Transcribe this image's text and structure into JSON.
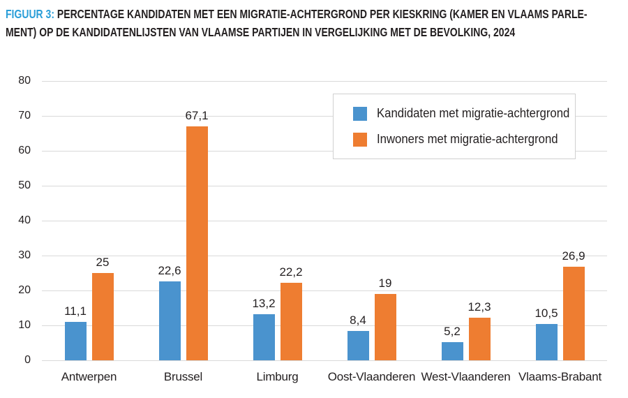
{
  "figure": {
    "prefix": "FIGUUR 3:",
    "title_rest_line1": "PERCENTAGE KANDIDATEN MET EEN MIGRATIE-ACHTERGROND PER KIESKRING (KAMER EN VLAAMS PARLE-",
    "title_line2": "MENT) OP DE KANDIDATENLIJSTEN VAN VLAAMSE PARTIJEN IN VERGELIJKING MET DE BEVOLKING, 2024"
  },
  "colors": {
    "series_blue": "#4a93ce",
    "series_orange": "#ee7d31",
    "title_accent_blue": "#2a9ed8",
    "gridline": "#d9d9d9",
    "text": "#231f20",
    "legend_border": "#d0d0d0"
  },
  "chart_data": {
    "type": "bar",
    "title": "FIGUUR 3: PERCENTAGE KANDIDATEN MET EEN MIGRATIE-ACHTERGROND PER KIESKRING (KAMER EN VLAAMS PARLEMENT) OP DE KANDIDATENLIJSTEN VAN VLAAMSE PARTIJEN IN VERGELIJKING MET DE BEVOLKING, 2024",
    "xlabel": "",
    "ylabel": "",
    "categories": [
      "Antwerpen",
      "Brussel",
      "Limburg",
      "Oost-Vlaanderen",
      "West-Vlaanderen",
      "Vlaams-Brabant"
    ],
    "series": [
      {
        "name": "Kandidaten met migratie-achtergrond",
        "color": "#4a93ce",
        "values": [
          11.1,
          22.6,
          13.2,
          8.4,
          5.2,
          10.5
        ],
        "labels": [
          "11,1",
          "22,6",
          "13,2",
          "8,4",
          "5,2",
          "10,5"
        ]
      },
      {
        "name": "Inwoners met migratie-achtergrond",
        "color": "#ee7d31",
        "values": [
          25,
          67.1,
          22.2,
          19,
          12.3,
          26.9
        ],
        "labels": [
          "25",
          "67,1",
          "22,2",
          "19",
          "12,3",
          "26,9"
        ]
      }
    ],
    "ylim": [
      0,
      80
    ],
    "ytick_step": 10,
    "yticks": [
      0,
      10,
      20,
      30,
      40,
      50,
      60,
      70,
      80
    ],
    "grid": true,
    "legend_position": "upper-right-inside"
  }
}
